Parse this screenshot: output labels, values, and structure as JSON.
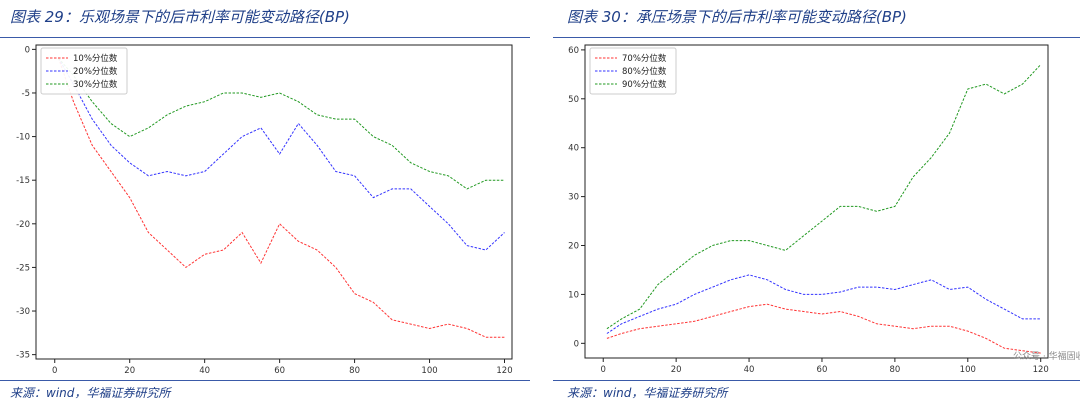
{
  "panels": {
    "left": {
      "title": "图表 29：乐观场景下的后市利率可能变动路径(BP)",
      "source": "来源：wind，华福证券研究所"
    },
    "right": {
      "title": "图表 30：承压场景下的后市利率可能变动路径(BP)",
      "source": "来源：wind，华福证券研究所"
    }
  },
  "watermark": {
    "text": "公众号 · 华福固收研究",
    "icon": "wechat-icon"
  },
  "chart_data": [
    {
      "type": "line",
      "title": "",
      "xlabel": "",
      "ylabel": "",
      "xlim": [
        -5,
        122
      ],
      "ylim": [
        -35.5,
        0.5
      ],
      "xticks": [
        0,
        20,
        40,
        60,
        80,
        100,
        120
      ],
      "yticks": [
        0,
        -5,
        -10,
        -15,
        -20,
        -25,
        -30,
        -35
      ],
      "legend": "top-left",
      "grid": false,
      "x": [
        1,
        5,
        10,
        15,
        20,
        25,
        30,
        35,
        40,
        45,
        50,
        55,
        60,
        65,
        70,
        75,
        80,
        85,
        90,
        95,
        100,
        105,
        110,
        115,
        120
      ],
      "series": [
        {
          "name": "10%分位数",
          "color": "#ff3333",
          "values": [
            -1,
            -6,
            -11,
            -14,
            -17,
            -21,
            -23,
            -25,
            -23.5,
            -23,
            -21,
            -24.5,
            -20,
            -22,
            -23,
            -25,
            -28,
            -29,
            -31,
            -31.5,
            -32,
            -31.5,
            -32,
            -33,
            -33
          ]
        },
        {
          "name": "20%分位数",
          "color": "#3333ff",
          "values": [
            -1,
            -4,
            -8,
            -11,
            -13,
            -14.5,
            -14,
            -14.5,
            -14,
            -12,
            -10,
            -9,
            -12,
            -8.5,
            -11,
            -14,
            -14.5,
            -17,
            -16,
            -16,
            -18,
            -20,
            -22.5,
            -23,
            -21
          ]
        },
        {
          "name": "30%分位数",
          "color": "#229922",
          "values": [
            -1,
            -3,
            -6,
            -8.5,
            -10,
            -9,
            -7.5,
            -6.5,
            -6,
            -5,
            -5,
            -5.5,
            -5,
            -6,
            -7.5,
            -8,
            -8,
            -10,
            -11,
            -13,
            -14,
            -14.5,
            -16,
            -15,
            -15
          ]
        }
      ]
    },
    {
      "type": "line",
      "title": "",
      "xlabel": "",
      "ylabel": "",
      "xlim": [
        -5,
        122
      ],
      "ylim": [
        -3,
        61
      ],
      "xticks": [
        0,
        20,
        40,
        60,
        80,
        100,
        120
      ],
      "yticks": [
        0,
        10,
        20,
        30,
        40,
        50,
        60
      ],
      "legend": "top-left",
      "grid": false,
      "x": [
        1,
        5,
        10,
        15,
        20,
        25,
        30,
        35,
        40,
        45,
        50,
        55,
        60,
        65,
        70,
        75,
        80,
        85,
        90,
        95,
        100,
        105,
        110,
        115,
        120
      ],
      "series": [
        {
          "name": "70%分位数",
          "color": "#ff3333",
          "values": [
            1,
            2,
            3,
            3.5,
            4,
            4.5,
            5.5,
            6.5,
            7.5,
            8,
            7,
            6.5,
            6,
            6.5,
            5.5,
            4,
            3.5,
            3,
            3.5,
            3.5,
            2.5,
            1,
            -1,
            -1.5,
            -2
          ]
        },
        {
          "name": "80%分位数",
          "color": "#3333ff",
          "values": [
            2,
            4,
            5.5,
            7,
            8,
            10,
            11.5,
            13,
            14,
            13,
            11,
            10,
            10,
            10.5,
            11.5,
            11.5,
            11,
            12,
            13,
            11,
            11.5,
            9,
            7,
            5,
            5
          ]
        },
        {
          "name": "90%分位数",
          "color": "#229922",
          "values": [
            3,
            5,
            7,
            12,
            15,
            18,
            20,
            21,
            21,
            20,
            19,
            22,
            25,
            28,
            28,
            27,
            28,
            34,
            38,
            43,
            52,
            53,
            51,
            53,
            57
          ]
        }
      ]
    }
  ]
}
